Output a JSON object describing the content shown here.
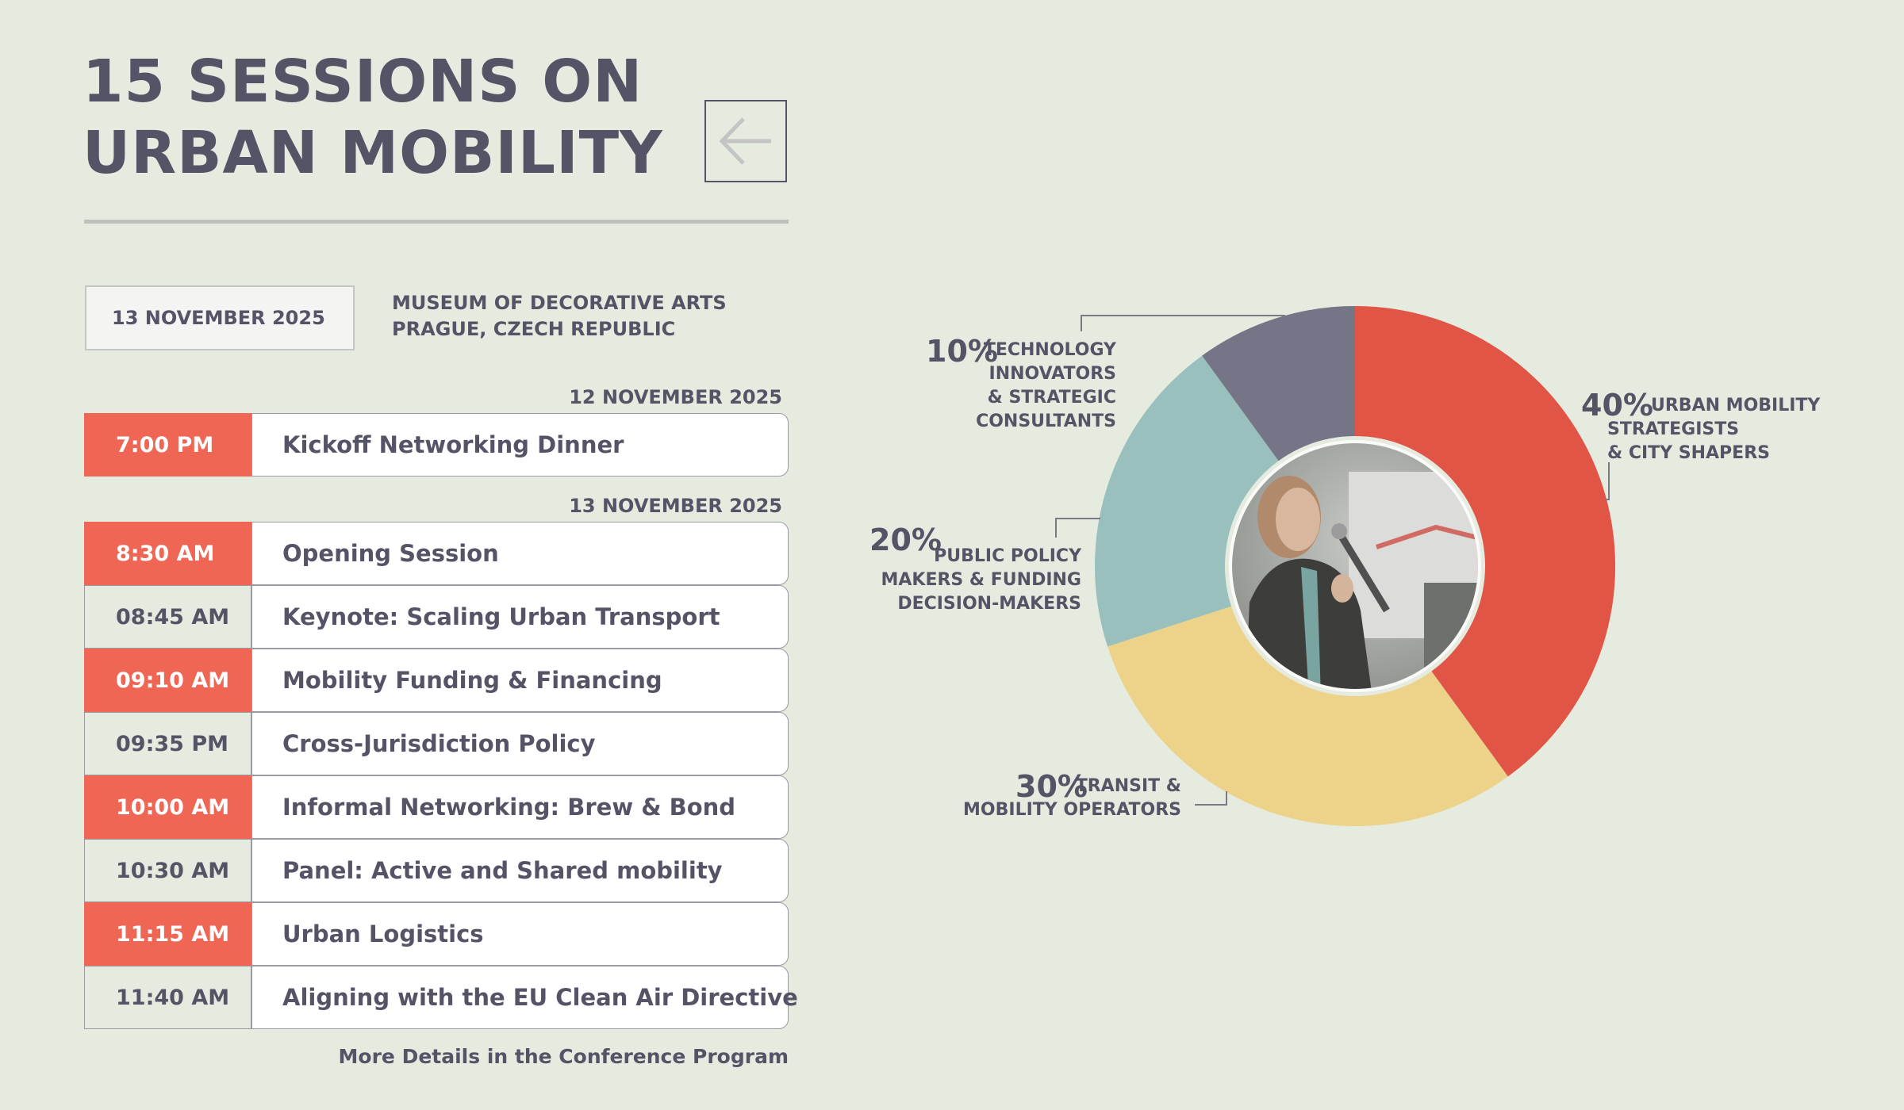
{
  "header": {
    "title_line1": "15 SESSIONS ON",
    "title_line2": "URBAN MOBILITY"
  },
  "event": {
    "date": "13 NOVEMBER 2025",
    "venue_line1": "MUSEUM OF DECORATIVE ARTS",
    "venue_line2": "PRAGUE, CZECH REPUBLIC"
  },
  "schedule": [
    {
      "day": "12 NOVEMBER 2025",
      "sessions": [
        {
          "time": "7:00 PM",
          "title": "Kickoff Networking Dinner",
          "highlight": true
        }
      ]
    },
    {
      "day": "13 NOVEMBER 2025",
      "sessions": [
        {
          "time": "8:30 AM",
          "title": "Opening Session",
          "highlight": true
        },
        {
          "time": "08:45 AM",
          "title": "Keynote: Scaling Urban Transport",
          "highlight": false
        },
        {
          "time": "09:10 AM",
          "title": "Mobility Funding & Financing",
          "highlight": true
        },
        {
          "time": "09:35 PM",
          "title": "Cross-Jurisdiction Policy",
          "highlight": false
        },
        {
          "time": "10:00 AM",
          "title": "Informal Networking: Brew & Bond",
          "highlight": true
        },
        {
          "time": "10:30 AM",
          "title": "Panel: Active and Shared mobility",
          "highlight": false
        },
        {
          "time": "11:15 AM",
          "title": "Urban Logistics",
          "highlight": true
        },
        {
          "time": "11:40 AM",
          "title": "Aligning with the EU Clean Air Directive",
          "highlight": false
        }
      ]
    }
  ],
  "footer": {
    "more_details": "More Details in the Conference Program"
  },
  "colors": {
    "accent": "#ef6654",
    "text": "#555366",
    "background": "#e6ebe0",
    "card": "#ffffff"
  },
  "icons": {
    "back": "arrow-left-icon"
  },
  "chart_data": {
    "type": "pie",
    "style": "donut",
    "center_image": "speaker photo",
    "series": [
      {
        "value": 40,
        "label_pct": "40%",
        "label_lines": [
          "URBAN MOBILITY",
          "STRATEGISTS",
          "& CITY SHAPERS"
        ],
        "color": "#e05545"
      },
      {
        "value": 30,
        "label_pct": "30%",
        "label_lines": [
          "TRANSIT &",
          "MOBILITY OPERATORS"
        ],
        "color": "#edd28a"
      },
      {
        "value": 20,
        "label_pct": "20%",
        "label_lines": [
          "PUBLIC POLICY",
          "MAKERS & FUNDING",
          "DECISION-MAKERS"
        ],
        "color": "#99c0bc"
      },
      {
        "value": 10,
        "label_pct": "10%",
        "label_lines": [
          "TECHNOLOGY",
          "INNOVATORS",
          "& STRATEGIC",
          "CONSULTANTS"
        ],
        "color": "#767587"
      }
    ]
  }
}
